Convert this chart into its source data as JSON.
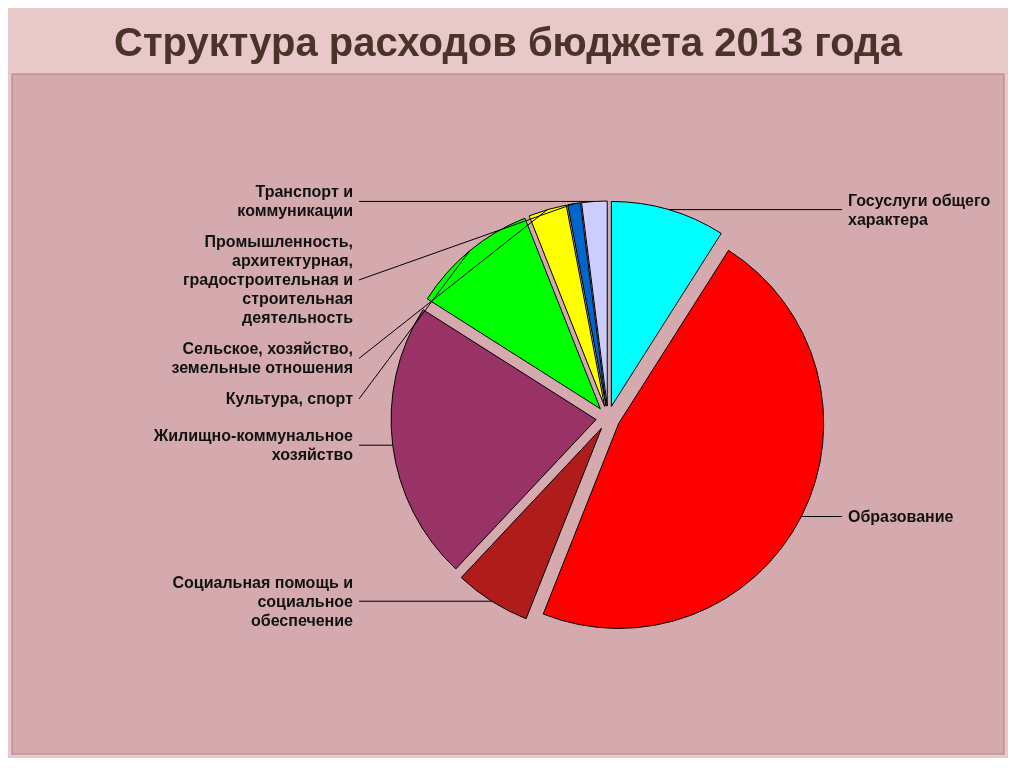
{
  "chart_data": {
    "type": "pie",
    "title": "Структура расходов бюджета 2013 года",
    "categories": [
      "Госуслуги общего характера",
      "Образование",
      "Социальная помощь и социальное обеспечение",
      "Жилищно-коммунальное хозяйство",
      "Культура, спорт",
      "Сельское, хозяйство, земельные отношения",
      "Промышленность, архитектурная, градостроительная и строительная деятельность",
      "Транспорт и коммуникации"
    ],
    "values": [
      9,
      47,
      6,
      22,
      10,
      3,
      1,
      2
    ],
    "colors": [
      "#00ffff",
      "#ff0000",
      "#b01c1c",
      "#993366",
      "#00ff00",
      "#ffff00",
      "#0066cc",
      "#ccccff"
    ]
  }
}
